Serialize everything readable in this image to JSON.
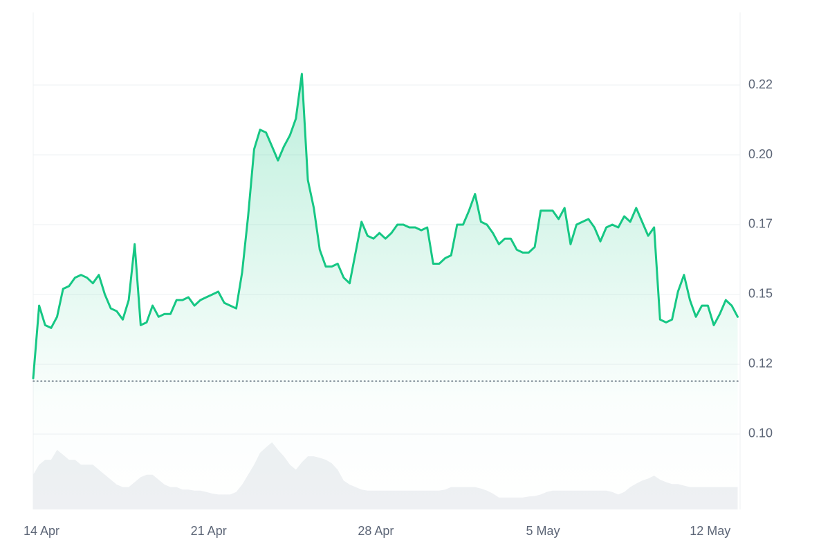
{
  "chart_data": {
    "type": "line",
    "color": "#16c784",
    "grid": true,
    "x": [
      0,
      0.25,
      0.5,
      0.75,
      1,
      1.25,
      1.5,
      1.75,
      2,
      2.25,
      2.5,
      2.75,
      3,
      3.25,
      3.5,
      3.75,
      4,
      4.25,
      4.5,
      4.75,
      5,
      5.25,
      5.5,
      5.75,
      6,
      6.25,
      6.5,
      6.75,
      7,
      7.25,
      7.5,
      7.75,
      8,
      8.25,
      8.5,
      8.75,
      9,
      9.25,
      9.5,
      9.75,
      10,
      10.25,
      10.5,
      10.75,
      11,
      11.25,
      11.5,
      11.75,
      12,
      12.25,
      12.5,
      12.75,
      13,
      13.25,
      13.5,
      13.75,
      14,
      14.25,
      14.5,
      14.75,
      15,
      15.25,
      15.5,
      15.75,
      16,
      16.25,
      16.5,
      16.75,
      17,
      17.25,
      17.5,
      17.75,
      18,
      18.25,
      18.5,
      18.75,
      19,
      19.25,
      19.5,
      19.75,
      20,
      20.25,
      20.5,
      20.75,
      21,
      21.25,
      21.5,
      21.75,
      22,
      22.25,
      22.5,
      22.75,
      23,
      23.25,
      23.5,
      23.75,
      24,
      24.25,
      24.5,
      24.75,
      25,
      25.25,
      25.5,
      25.75,
      26,
      26.25,
      26.5,
      26.75,
      27,
      27.25,
      27.5,
      27.75,
      28,
      28.25,
      28.5,
      28.75,
      29,
      29.25,
      29.5
    ],
    "values": [
      0.12,
      0.146,
      0.139,
      0.138,
      0.142,
      0.152,
      0.153,
      0.156,
      0.157,
      0.156,
      0.154,
      0.157,
      0.15,
      0.145,
      0.144,
      0.141,
      0.148,
      0.168,
      0.139,
      0.14,
      0.146,
      0.142,
      0.143,
      0.143,
      0.148,
      0.148,
      0.149,
      0.146,
      0.148,
      0.149,
      0.15,
      0.151,
      0.147,
      0.146,
      0.145,
      0.158,
      0.178,
      0.202,
      0.209,
      0.208,
      0.203,
      0.198,
      0.203,
      0.207,
      0.213,
      0.229,
      0.191,
      0.181,
      0.166,
      0.16,
      0.16,
      0.161,
      0.156,
      0.154,
      0.165,
      0.176,
      0.171,
      0.17,
      0.172,
      0.17,
      0.172,
      0.175,
      0.175,
      0.174,
      0.174,
      0.173,
      0.174,
      0.161,
      0.161,
      0.163,
      0.164,
      0.175,
      0.175,
      0.18,
      0.186,
      0.176,
      0.175,
      0.172,
      0.168,
      0.17,
      0.17,
      0.166,
      0.165,
      0.165,
      0.167,
      0.18,
      0.18,
      0.18,
      0.177,
      0.181,
      0.168,
      0.175,
      0.176,
      0.177,
      0.174,
      0.169,
      0.174,
      0.175,
      0.174,
      0.178,
      0.176,
      0.181,
      0.176,
      0.171,
      0.174,
      0.141,
      0.14,
      0.141,
      0.151,
      0.157,
      0.148,
      0.142,
      0.146,
      0.146,
      0.139,
      0.143,
      0.148,
      0.146,
      0.142
    ],
    "baseline": 0.119,
    "volume": {
      "axis": "y2",
      "color": "#eef0f3",
      "values": [
        7,
        9,
        10,
        10,
        12,
        11,
        10,
        10,
        9,
        9,
        9,
        8,
        7,
        6,
        5,
        4.5,
        4.5,
        5.5,
        6.5,
        7,
        7,
        6,
        5,
        4.5,
        4.5,
        4,
        4,
        3.8,
        3.8,
        3.5,
        3.2,
        3,
        3,
        3,
        3.5,
        5,
        7,
        9,
        11.4,
        12.5,
        13.5,
        12,
        10.7,
        9,
        8,
        9.5,
        10.7,
        10.7,
        10.4,
        10,
        9.3,
        8,
        5.8,
        5,
        4.5,
        4,
        3.8,
        3.8,
        3.8,
        3.8,
        3.8,
        3.8,
        3.8,
        3.8,
        3.8,
        3.8,
        3.8,
        3.8,
        3.8,
        4,
        4.5,
        4.5,
        4.5,
        4.5,
        4.5,
        4.2,
        3.8,
        3.2,
        2.4,
        2.4,
        2.4,
        2.4,
        2.4,
        2.6,
        2.7,
        3,
        3.5,
        3.8,
        3.8,
        3.8,
        3.8,
        3.8,
        3.8,
        3.8,
        3.8,
        3.8,
        3.8,
        3.5,
        3,
        3.5,
        4.5,
        5.2,
        5.8,
        6.2,
        6.8,
        6,
        5.5,
        5.1,
        5.1,
        4.8,
        4.5,
        4.5,
        4.5,
        4.5,
        4.5,
        4.5,
        4.5,
        4.5,
        4.5
      ]
    },
    "xlim": [
      0,
      29.6
    ],
    "xticks": [
      {
        "value": 0,
        "label": "14 Apr"
      },
      {
        "value": 7,
        "label": "21 Apr"
      },
      {
        "value": 14,
        "label": "28 Apr"
      },
      {
        "value": 21,
        "label": "5 May"
      },
      {
        "value": 28,
        "label": "12 May"
      }
    ],
    "ylim": [
      0.073,
      0.251
    ],
    "yticks": [
      {
        "value": 0.1,
        "label": "0.10"
      },
      {
        "value": 0.125,
        "label": "0.12"
      },
      0.15,
      {
        "value": 0.175,
        "label": "0.17"
      },
      {
        "value": 0.2,
        "label": "0.20"
      },
      {
        "value": 0.225,
        "label": "0.22"
      }
    ],
    "y2lim": [
      0,
      100
    ]
  }
}
